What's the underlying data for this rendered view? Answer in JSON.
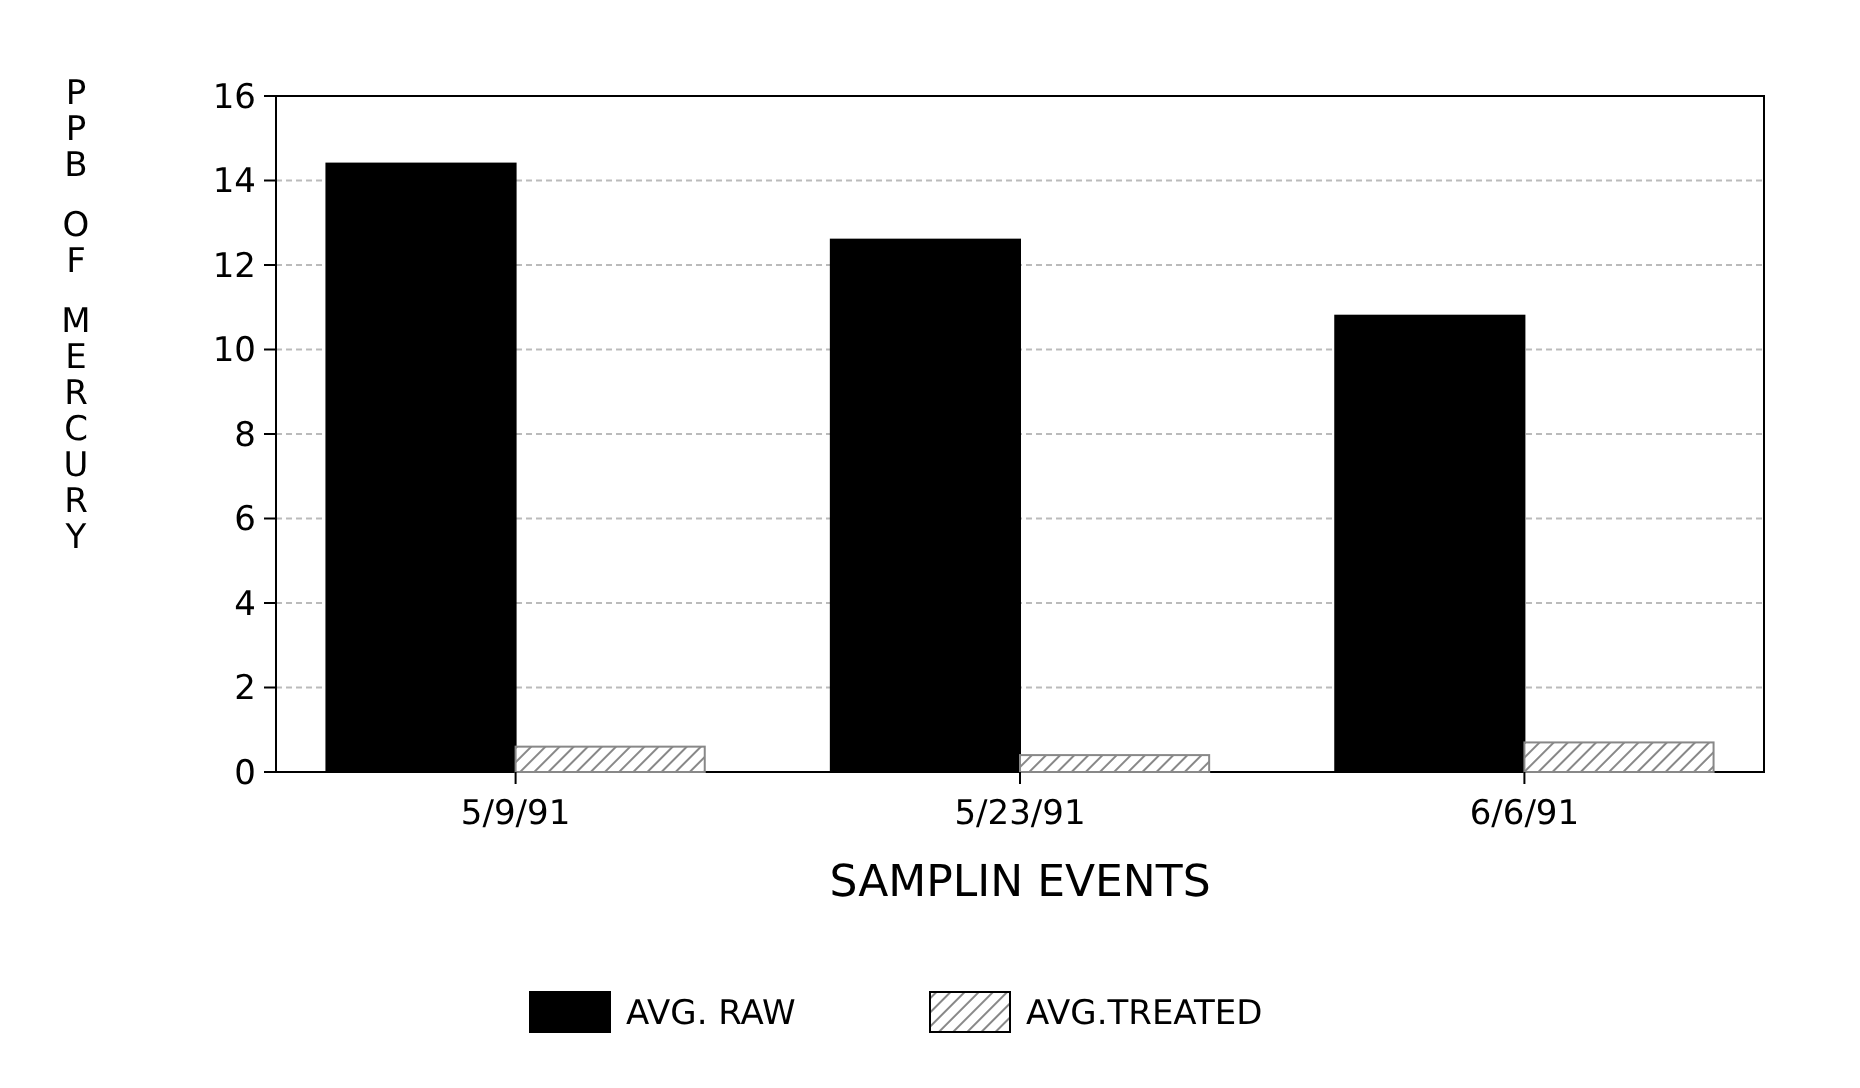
{
  "chart_data": {
    "type": "bar",
    "xlabel": "SAMPLIN EVENTS",
    "ylabel": "PPB OF MERCURY",
    "categories": [
      "5/9/91",
      "5/23/91",
      "6/6/91"
    ],
    "series": [
      {
        "name": "AVG. RAW",
        "color": "#000000",
        "values": [
          14.4,
          12.6,
          10.8
        ]
      },
      {
        "name": "AVG.TREATED",
        "color": "#888888",
        "values": [
          0.6,
          0.4,
          0.7
        ]
      }
    ],
    "ylim": [
      0,
      16
    ],
    "yticks": [
      0,
      2,
      4,
      6,
      8,
      10,
      12,
      14,
      16
    ],
    "grid": "y",
    "legend": "bottom"
  }
}
